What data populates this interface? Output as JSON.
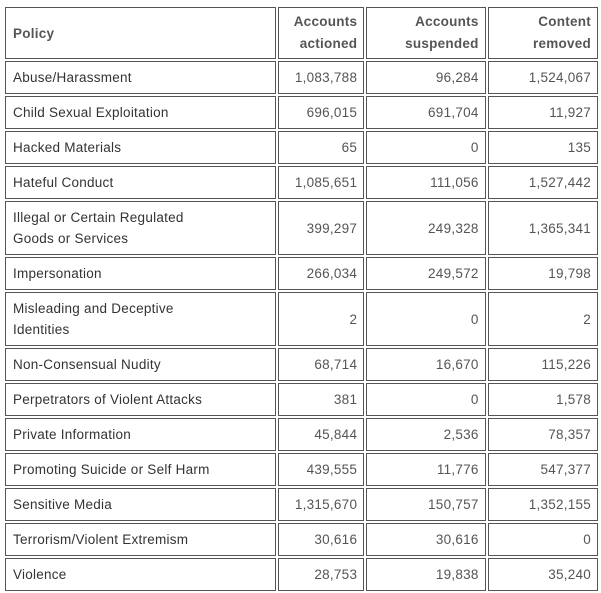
{
  "headers": {
    "policy": "Policy",
    "actioned_line1": "Accounts",
    "actioned_line2": "actioned",
    "suspended_line1": "Accounts",
    "suspended_line2": "suspended",
    "removed_line1": "Content",
    "removed_line2": "removed"
  },
  "rows": [
    {
      "policy": "Abuse/Harassment",
      "actioned": "1,083,788",
      "suspended": "96,284",
      "removed": "1,524,067"
    },
    {
      "policy": "Child Sexual Exploitation",
      "actioned": "696,015",
      "suspended": "691,704",
      "removed": "11,927"
    },
    {
      "policy": "Hacked Materials",
      "actioned": "65",
      "suspended": "0",
      "removed": "135"
    },
    {
      "policy": "Hateful Conduct",
      "actioned": "1,085,651",
      "suspended": "111,056",
      "removed": "1,527,442"
    },
    {
      "policy_line1": "Illegal or Certain Regulated",
      "policy_line2": "Goods or Services",
      "actioned": "399,297",
      "suspended": "249,328",
      "removed": "1,365,341"
    },
    {
      "policy": "Impersonation",
      "actioned": "266,034",
      "suspended": "249,572",
      "removed": "19,798"
    },
    {
      "policy_line1": "Misleading and Deceptive",
      "policy_line2": "Identities",
      "actioned": "2",
      "suspended": "0",
      "removed": "2"
    },
    {
      "policy": "Non-Consensual Nudity",
      "actioned": "68,714",
      "suspended": "16,670",
      "removed": "115,226"
    },
    {
      "policy": "Perpetrators of Violent Attacks",
      "actioned": "381",
      "suspended": "0",
      "removed": "1,578"
    },
    {
      "policy": "Private Information",
      "actioned": "45,844",
      "suspended": "2,536",
      "removed": "78,357"
    },
    {
      "policy": "Promoting Suicide or Self Harm",
      "actioned": "439,555",
      "suspended": "11,776",
      "removed": "547,377"
    },
    {
      "policy": "Sensitive Media",
      "actioned": "1,315,670",
      "suspended": "150,757",
      "removed": "1,352,155"
    },
    {
      "policy": "Terrorism/Violent Extremism",
      "actioned": "30,616",
      "suspended": "30,616",
      "removed": "0"
    },
    {
      "policy": "Violence",
      "actioned": "28,753",
      "suspended": "19,838",
      "removed": "35,240"
    }
  ]
}
